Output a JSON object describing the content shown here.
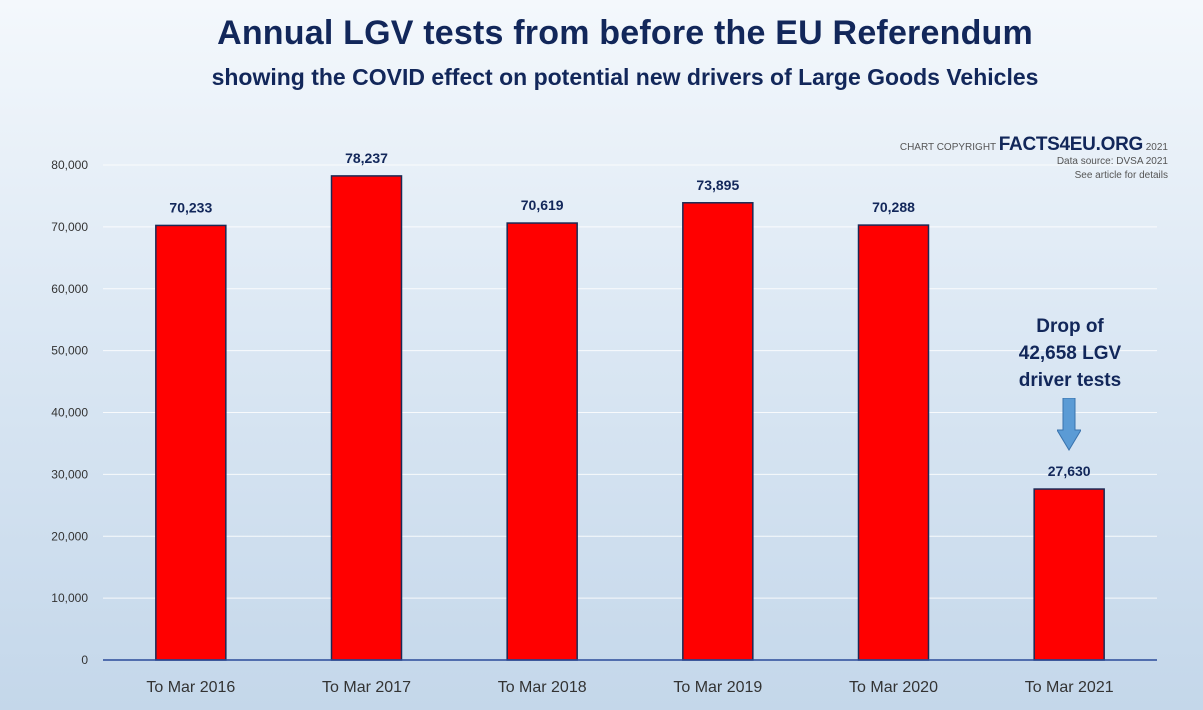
{
  "chart_data": {
    "type": "bar",
    "title": "Annual LGV tests from before the EU Referendum",
    "subtitle": "showing the COVID effect on potential new drivers of Large Goods Vehicles",
    "categories": [
      "To Mar 2016",
      "To Mar 2017",
      "To Mar 2018",
      "To Mar 2019",
      "To Mar 2020",
      "To Mar 2021"
    ],
    "values": [
      70233,
      78237,
      70619,
      73895,
      70288,
      27630
    ],
    "value_labels": [
      "70,233",
      "78,237",
      "70,619",
      "73,895",
      "70,288",
      "27,630"
    ],
    "ylim": [
      0,
      80000
    ],
    "yticks": [
      0,
      10000,
      20000,
      30000,
      40000,
      50000,
      60000,
      70000,
      80000
    ],
    "ytick_labels": [
      "0",
      "10,000",
      "20,000",
      "30,000",
      "40,000",
      "50,000",
      "60,000",
      "70,000",
      "80,000"
    ],
    "xlabel": "",
    "ylabel": "",
    "grid": true,
    "bar_color": "#ff0000",
    "annotation": {
      "lines": [
        "Drop of",
        "42,658 LGV",
        "driver tests"
      ],
      "arrow": "down-arrow-icon"
    }
  },
  "copyright": {
    "prefix": "CHART COPYRIGHT",
    "brand": "FACTS4EU.ORG",
    "year": "2021",
    "source": "Data source: DVSA 2021",
    "note": "See article for details"
  },
  "colors": {
    "title": "#12275a",
    "axis": "#2a4a9a",
    "grid": "#ffffff",
    "bar": "#ff0000",
    "arrow": "#5b9bd5"
  }
}
